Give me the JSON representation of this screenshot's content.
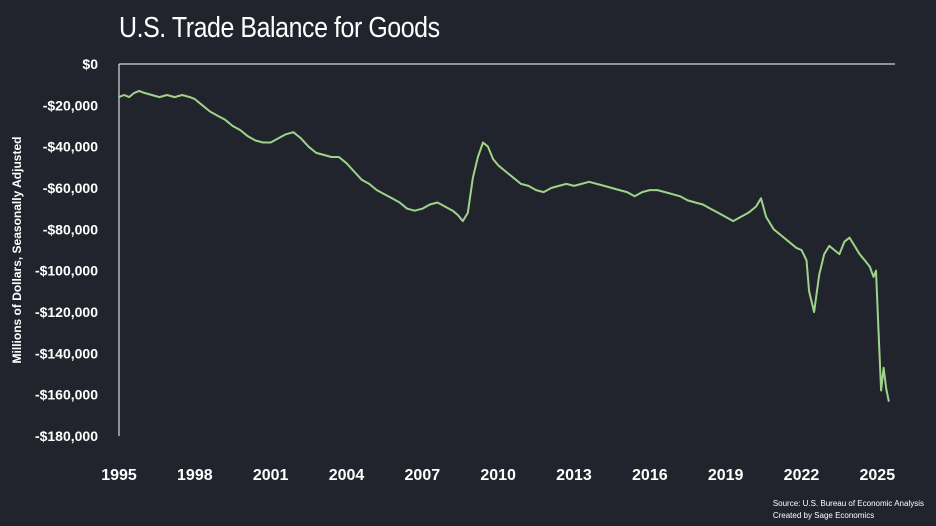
{
  "colors": {
    "background": "#21242c",
    "line": "#9fd38a",
    "axis": "#ffffff"
  },
  "chart_data": {
    "type": "line",
    "title": "U.S. Trade Balance for Goods",
    "ylabel": "Millions of Dollars, Seasonally Adjusted",
    "xlabel": "",
    "xlim": [
      1995,
      2025.7
    ],
    "ylim": [
      -180000,
      0
    ],
    "x_tick_labels": [
      "1995",
      "1998",
      "2001",
      "2004",
      "2007",
      "2010",
      "2013",
      "2016",
      "2019",
      "2022",
      "2025"
    ],
    "y_tick_labels": [
      "$0",
      "-$20,000",
      "-$40,000",
      "-$60,000",
      "-$80,000",
      "-$100,000",
      "-$120,000",
      "-$140,000",
      "-$160,000",
      "-$180,000"
    ],
    "y_tick_values": [
      0,
      -20000,
      -40000,
      -60000,
      -80000,
      -100000,
      -120000,
      -140000,
      -160000,
      -180000
    ],
    "grid": false,
    "series": [
      {
        "values_x": [
          1995.0,
          1995.2,
          1995.4,
          1995.6,
          1995.8,
          1996.0,
          1996.3,
          1996.6,
          1996.9,
          1997.2,
          1997.5,
          1997.8,
          1998.0,
          1998.3,
          1998.6,
          1998.9,
          1999.2,
          1999.5,
          1999.8,
          2000.1,
          2000.4,
          2000.7,
          2001.0,
          2001.3,
          2001.6,
          2001.9,
          2002.2,
          2002.5,
          2002.8,
          2003.1,
          2003.4,
          2003.7,
          2004.0,
          2004.3,
          2004.6,
          2004.9,
          2005.2,
          2005.5,
          2005.8,
          2006.1,
          2006.4,
          2006.7,
          2007.0,
          2007.3,
          2007.6,
          2007.9,
          2008.2,
          2008.4,
          2008.6,
          2008.8,
          2009.0,
          2009.2,
          2009.4,
          2009.6,
          2009.8,
          2010.0,
          2010.3,
          2010.6,
          2010.9,
          2011.2,
          2011.5,
          2011.8,
          2012.1,
          2012.4,
          2012.7,
          2013.0,
          2013.3,
          2013.6,
          2013.9,
          2014.2,
          2014.5,
          2014.8,
          2015.1,
          2015.4,
          2015.7,
          2016.0,
          2016.3,
          2016.6,
          2016.9,
          2017.2,
          2017.5,
          2017.8,
          2018.1,
          2018.4,
          2018.7,
          2019.0,
          2019.3,
          2019.6,
          2019.9,
          2020.2,
          2020.4,
          2020.6,
          2020.9,
          2021.2,
          2021.5,
          2021.8,
          2022.0,
          2022.2,
          2022.3,
          2022.5,
          2022.7,
          2022.9,
          2023.1,
          2023.3,
          2023.5,
          2023.7,
          2023.9,
          2024.1,
          2024.3,
          2024.5,
          2024.7,
          2024.85,
          2024.95,
          2025.05,
          2025.15,
          2025.25,
          2025.35,
          2025.45
        ],
        "values": [
          -16000,
          -15000,
          -16000,
          -14000,
          -13000,
          -14000,
          -15000,
          -16000,
          -15000,
          -16000,
          -15000,
          -16000,
          -17000,
          -20000,
          -23000,
          -25000,
          -27000,
          -30000,
          -32000,
          -35000,
          -37000,
          -38000,
          -38000,
          -36000,
          -34000,
          -33000,
          -36000,
          -40000,
          -43000,
          -44000,
          -45000,
          -45000,
          -48000,
          -52000,
          -56000,
          -58000,
          -61000,
          -63000,
          -65000,
          -67000,
          -70000,
          -71000,
          -70000,
          -68000,
          -67000,
          -69000,
          -71000,
          -73000,
          -76000,
          -72000,
          -55000,
          -45000,
          -38000,
          -40000,
          -46000,
          -49000,
          -52000,
          -55000,
          -58000,
          -59000,
          -61000,
          -62000,
          -60000,
          -59000,
          -58000,
          -59000,
          -58000,
          -57000,
          -58000,
          -59000,
          -60000,
          -61000,
          -62000,
          -64000,
          -62000,
          -61000,
          -61000,
          -62000,
          -63000,
          -64000,
          -66000,
          -67000,
          -68000,
          -70000,
          -72000,
          -74000,
          -76000,
          -74000,
          -72000,
          -69000,
          -65000,
          -74000,
          -80000,
          -83000,
          -86000,
          -89000,
          -90000,
          -95000,
          -110000,
          -120000,
          -102000,
          -92000,
          -88000,
          -90000,
          -92000,
          -86000,
          -84000,
          -88000,
          -92000,
          -95000,
          -98000,
          -103000,
          -100000,
          -130000,
          -158000,
          -147000,
          -157000,
          -163000
        ],
        "color": "#9fd38a"
      }
    ]
  },
  "footer": {
    "source": "Source:  U.S. Bureau of Economic Analysis",
    "credit": "Created by Sage Economics"
  }
}
